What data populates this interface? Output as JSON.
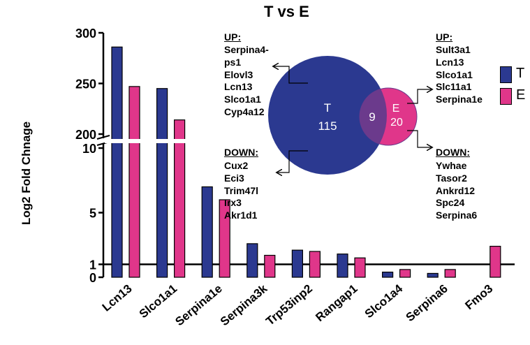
{
  "title_partial": "T vs E",
  "colors": {
    "T": "#2b3990",
    "E": "#e0368a",
    "overlap": "#6b3a8c"
  },
  "chart_data": {
    "type": "bar",
    "categories": [
      "Lcn13",
      "Slco1a1",
      "Serpina1e",
      "Serpina3k",
      "Trp53inp2",
      "Rangap1",
      "Slco1a4",
      "Serpina6",
      "Fmo3"
    ],
    "series": [
      {
        "name": "T",
        "values": [
          286,
          245,
          7.0,
          2.6,
          2.1,
          1.8,
          0.4,
          0.3,
          0.0
        ]
      },
      {
        "name": "E",
        "values": [
          247,
          214,
          6.0,
          1.7,
          2.0,
          1.5,
          0.6,
          0.6,
          2.4
        ]
      }
    ],
    "ylabel": "Log2 Fold Chnage",
    "xlabel": "",
    "y_axis_break": {
      "lower_range": [
        0,
        10
      ],
      "upper_range": [
        200,
        300
      ]
    },
    "yticks_upper": [
      "300",
      "250",
      "200"
    ],
    "yticks_lower": [
      "10",
      "5",
      "1",
      "0"
    ],
    "reference_line_y": 1,
    "grid": false,
    "legend_position": "right"
  },
  "legend": [
    {
      "label": "T",
      "color": "#2b3990"
    },
    {
      "label": "E",
      "color": "#e0368a"
    }
  ],
  "venn": {
    "T": {
      "label": "T",
      "count": "115"
    },
    "E": {
      "label": "E",
      "count": "20"
    },
    "overlap": {
      "count": "9"
    }
  },
  "gene_lists": {
    "T_up": {
      "heading": "UP:",
      "genes": [
        "Serpina4-",
        "ps1",
        "Elovl3",
        "Lcn13",
        "Slco1a1",
        "Cyp4a12"
      ]
    },
    "T_down": {
      "heading": "DOWN:",
      "genes": [
        "Cux2",
        "Eci3",
        "Trim47l",
        "Irx3",
        "Akr1d1"
      ]
    },
    "E_up": {
      "heading": "UP:",
      "genes": [
        "Sult3a1",
        "Lcn13",
        "Slco1a1",
        "Slc11a1",
        "Serpina1e"
      ]
    },
    "E_down": {
      "heading": "DOWN:",
      "genes": [
        "Ywhae",
        "Tasor2",
        "Ankrd12",
        "Spc24",
        "Serpina6"
      ]
    }
  }
}
